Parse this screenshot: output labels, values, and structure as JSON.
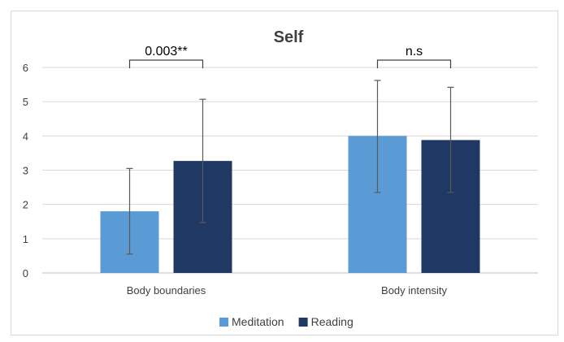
{
  "chart_data": {
    "type": "bar",
    "title": "Self",
    "xlabel": "",
    "ylabel": "",
    "ylim": [
      0,
      6
    ],
    "yticks": [
      0,
      1,
      2,
      3,
      4,
      5,
      6
    ],
    "grid": true,
    "legend_position": "bottom",
    "categories": [
      "Body boundaries",
      "Body intensity"
    ],
    "series": [
      {
        "name": "Meditation",
        "color": "#5b9bd5",
        "values": [
          1.8,
          4.0
        ],
        "error_low": [
          0.55,
          2.35
        ],
        "error_high": [
          3.05,
          5.62
        ]
      },
      {
        "name": "Reading",
        "color": "#1f3864",
        "values": [
          3.27,
          3.88
        ],
        "error_low": [
          1.47,
          2.35
        ],
        "error_high": [
          5.07,
          5.42
        ]
      }
    ],
    "annotations": [
      {
        "category_index": 0,
        "text": "0.003**"
      },
      {
        "category_index": 1,
        "text": "n.s"
      }
    ]
  }
}
